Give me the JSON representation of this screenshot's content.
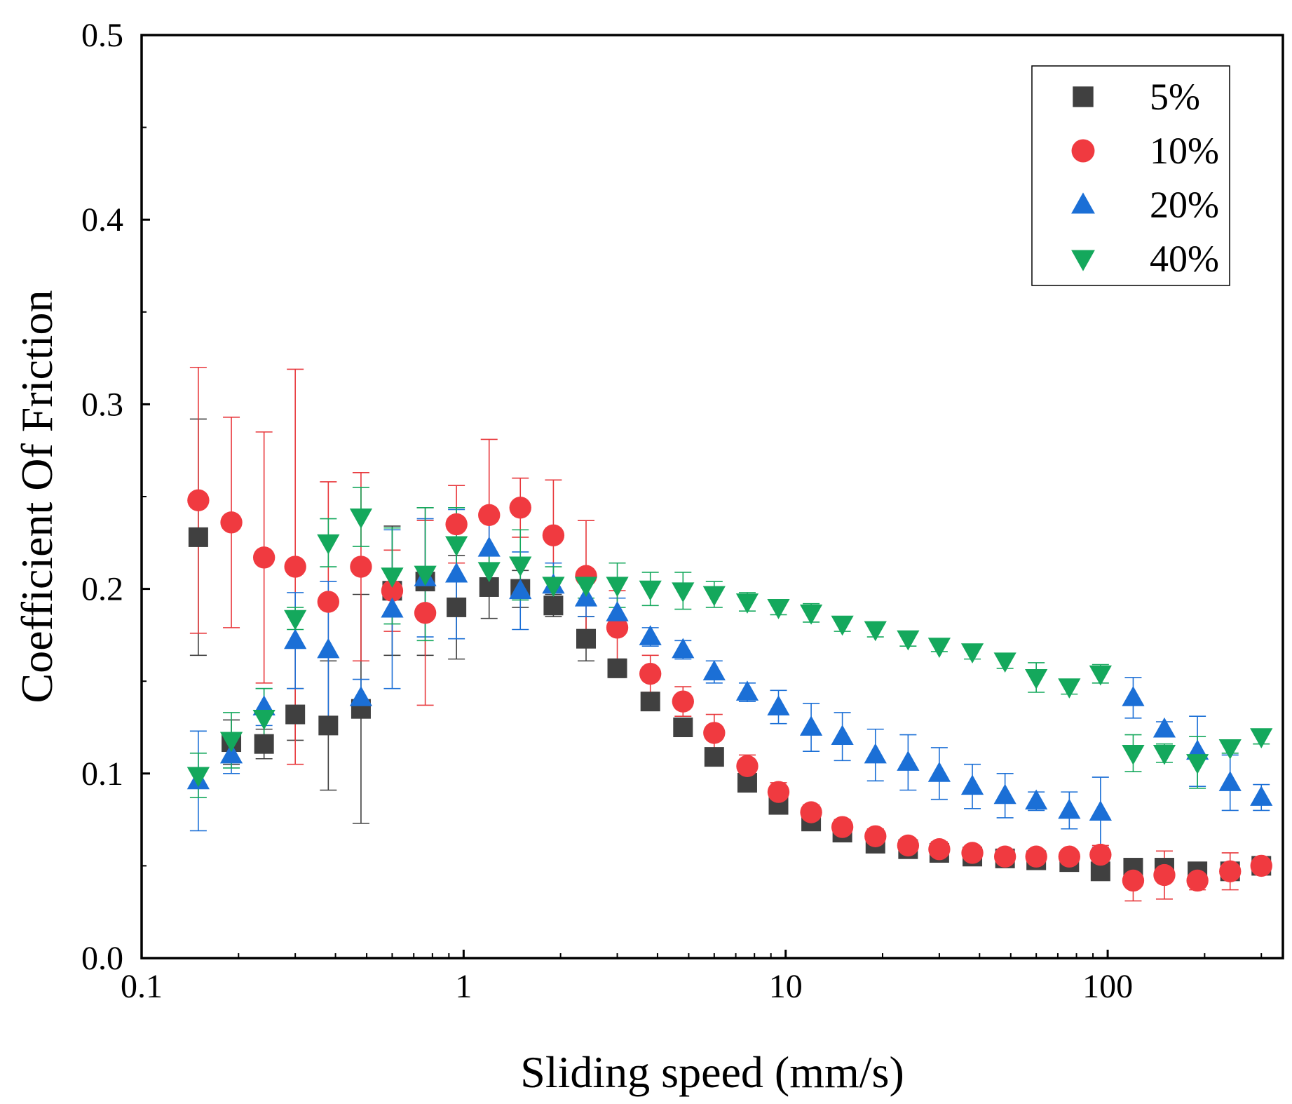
{
  "chart_data": {
    "type": "scatter",
    "xscale": "log",
    "xlabel": "Sliding speed (mm/s)",
    "ylabel": "Coefficient Of Friction",
    "xlim": [
      0.1,
      350
    ],
    "ylim": [
      0.0,
      0.5
    ],
    "xticks": [
      {
        "value": 0.1,
        "label": "0.1"
      },
      {
        "value": 1,
        "label": "1"
      },
      {
        "value": 10,
        "label": "10"
      },
      {
        "value": 100,
        "label": "100"
      }
    ],
    "yticks": [
      {
        "value": 0.0,
        "label": "0.0"
      },
      {
        "value": 0.1,
        "label": "0.1"
      },
      {
        "value": 0.2,
        "label": "0.2"
      },
      {
        "value": 0.3,
        "label": "0.3"
      },
      {
        "value": 0.4,
        "label": "0.4"
      },
      {
        "value": 0.5,
        "label": "0.5"
      }
    ],
    "legend_position": "top-right",
    "x": [
      0.15,
      0.19,
      0.24,
      0.3,
      0.38,
      0.48,
      0.6,
      0.76,
      0.95,
      1.2,
      1.5,
      1.9,
      2.4,
      3.0,
      3.8,
      4.8,
      6.0,
      7.6,
      9.5,
      12,
      15,
      19,
      24,
      30,
      38,
      48,
      60,
      76,
      95,
      120,
      150,
      190,
      240,
      300
    ],
    "series": [
      {
        "name": "5%",
        "marker": "square",
        "color": "#404040",
        "error_color": "#404040",
        "values": [
          0.228,
          0.117,
          0.116,
          0.132,
          0.126,
          0.135,
          0.199,
          0.204,
          0.19,
          0.201,
          0.2,
          0.191,
          0.173,
          0.157,
          0.139,
          0.125,
          0.109,
          0.095,
          0.083,
          0.074,
          0.068,
          0.062,
          0.059,
          0.057,
          0.055,
          0.054,
          0.053,
          0.052,
          0.047,
          0.049,
          0.049,
          0.047,
          0.047,
          0.05
        ],
        "errors": [
          0.064,
          0.012,
          0.008,
          0.014,
          0.035,
          0.062,
          0.035,
          0.04,
          0.028,
          0.017,
          0.01,
          0.006,
          0.012,
          0.005,
          0.004,
          0.003,
          0.003,
          0.003,
          0.002,
          0.002,
          0.002,
          0.002,
          0.002,
          0.002,
          0.002,
          0.002,
          0.002,
          0.002,
          0.003,
          0.004,
          0.004,
          0.003,
          0.003,
          0.002
        ]
      },
      {
        "name": "10%",
        "marker": "circle",
        "color": "#f03a40",
        "error_color": "#e8383c",
        "values": [
          0.248,
          0.236,
          0.217,
          0.212,
          0.193,
          0.212,
          0.199,
          0.187,
          0.235,
          0.24,
          0.244,
          0.229,
          0.207,
          0.179,
          0.154,
          0.139,
          0.122,
          0.104,
          0.09,
          0.079,
          0.071,
          0.066,
          0.061,
          0.059,
          0.057,
          0.055,
          0.055,
          0.055,
          0.056,
          0.042,
          0.045,
          0.042,
          0.047,
          0.05
        ],
        "errors": [
          0.072,
          0.057,
          0.068,
          0.107,
          0.065,
          0.051,
          0.022,
          0.05,
          0.021,
          0.041,
          0.016,
          0.03,
          0.03,
          0.02,
          0.01,
          0.008,
          0.01,
          0.006,
          0.005,
          0.004,
          0.004,
          0.004,
          0.003,
          0.004,
          0.003,
          0.003,
          0.003,
          0.003,
          0.005,
          0.011,
          0.013,
          0.005,
          0.01,
          0.003
        ]
      },
      {
        "name": "20%",
        "marker": "triangle-up",
        "color": "#1b6fd6",
        "error_color": "#1b6fd6",
        "values": [
          0.096,
          0.11,
          0.136,
          0.172,
          0.167,
          0.141,
          0.189,
          0.206,
          0.208,
          0.222,
          0.199,
          0.202,
          0.195,
          0.187,
          0.174,
          0.167,
          0.155,
          0.144,
          0.136,
          0.125,
          0.12,
          0.11,
          0.106,
          0.1,
          0.093,
          0.088,
          0.085,
          0.08,
          0.079,
          0.141,
          0.124,
          0.112,
          0.095,
          0.087
        ],
        "errors": [
          0.027,
          0.01,
          0.01,
          0.026,
          0.037,
          0.01,
          0.043,
          0.032,
          0.035,
          0.018,
          0.021,
          0.012,
          0.01,
          0.008,
          0.005,
          0.005,
          0.006,
          0.005,
          0.009,
          0.013,
          0.013,
          0.014,
          0.015,
          0.014,
          0.012,
          0.012,
          0.005,
          0.01,
          0.019,
          0.011,
          0.004,
          0.019,
          0.015,
          0.007
        ]
      },
      {
        "name": "40%",
        "marker": "triangle-down",
        "color": "#14a85c",
        "error_color": "#14a85c",
        "values": [
          0.099,
          0.118,
          0.13,
          0.184,
          0.225,
          0.239,
          0.207,
          0.208,
          0.224,
          0.21,
          0.213,
          0.202,
          0.202,
          0.202,
          0.2,
          0.199,
          0.197,
          0.193,
          0.19,
          0.187,
          0.181,
          0.178,
          0.173,
          0.169,
          0.166,
          0.161,
          0.152,
          0.147,
          0.154,
          0.111,
          0.111,
          0.106,
          0.114,
          0.12
        ],
        "errors": [
          0.012,
          0.015,
          0.016,
          0.006,
          0.013,
          0.016,
          0.026,
          0.036,
          0.02,
          0.01,
          0.019,
          0.01,
          0.007,
          0.012,
          0.009,
          0.01,
          0.007,
          0.005,
          0.004,
          0.005,
          0.004,
          0.004,
          0.004,
          0.003,
          0.004,
          0.004,
          0.008,
          0.004,
          0.005,
          0.01,
          0.005,
          0.014,
          0.003,
          0.004
        ]
      }
    ]
  }
}
